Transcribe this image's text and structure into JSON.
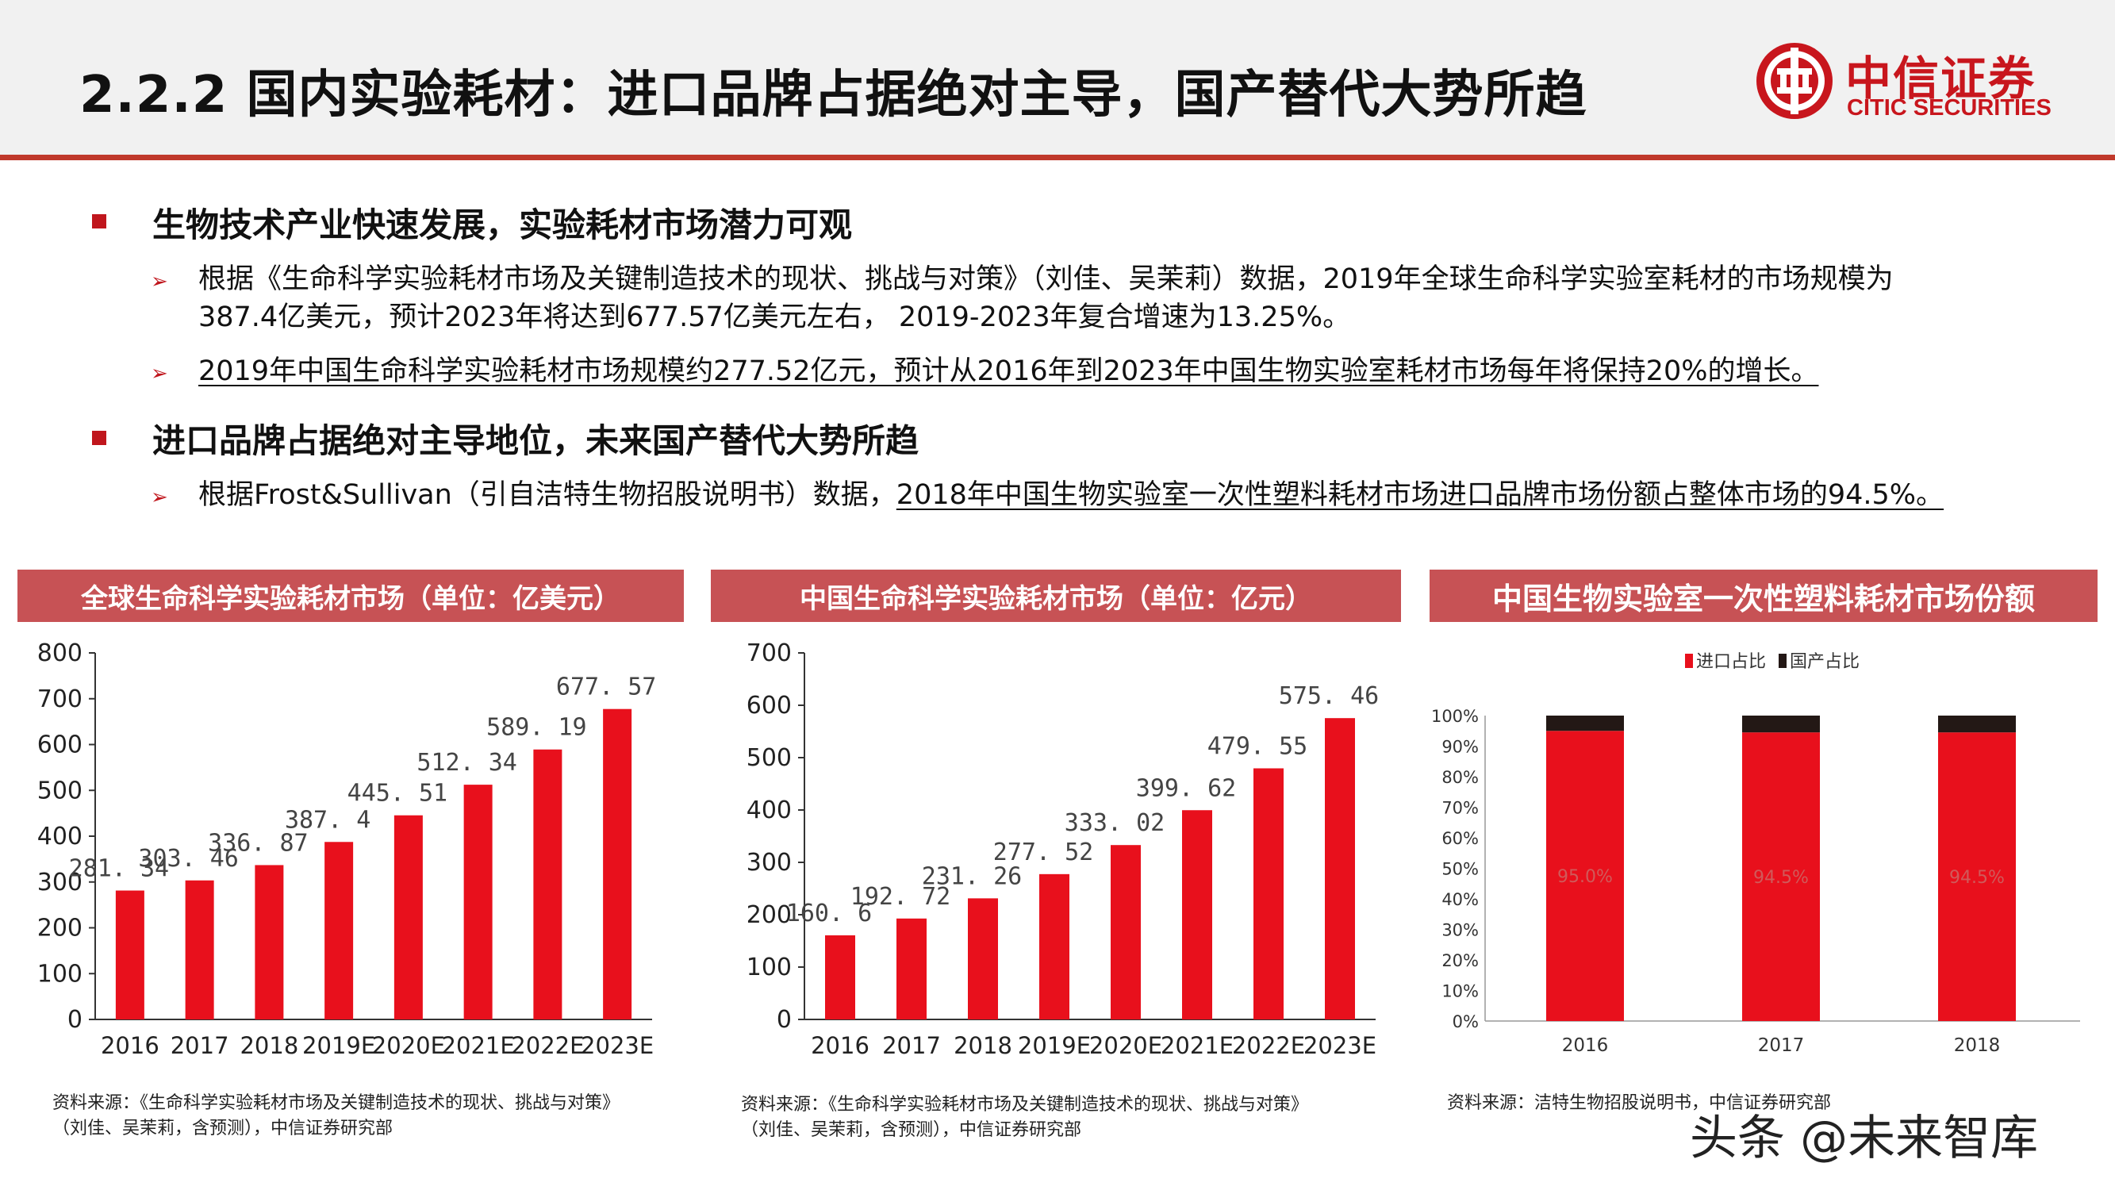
{
  "header": {
    "title": "2.2.2 国内实验耗材：进口品牌占据绝对主导，国产替代大势所趋",
    "logo_cn": "中信证券",
    "logo_en": "CITIC SECURITIES"
  },
  "colors": {
    "accent": "#c0392b",
    "bar_red": "#e8101c",
    "panel_header": "#c75255",
    "domestic": "#231815"
  },
  "section1": {
    "heading": "生物技术产业快速发展，实验耗材市场潜力可观",
    "item1_line1": "根据《生命科学实验耗材市场及关键制造技术的现状、挑战与对策》（刘佳、吴茉莉）数据，2019年全球生命科学实验室耗材的市场规模为",
    "item1_line2": "387.4亿美元，预计2023年将达到677.57亿美元左右， 2019-2023年复合增速为13.25%。",
    "item2": "2019年中国生命科学实验耗材市场规模约277.52亿元，预计从2016年到2023年中国生物实验室耗材市场每年将保持20%的增长。"
  },
  "section2": {
    "heading": "进口品牌占据绝对主导地位，未来国产替代大势所趋",
    "item1_plain": "根据Frost&Sullivan（引自洁特生物招股说明书）数据，",
    "item1_underlined": "2018年中国生物实验室一次性塑料耗材市场进口品牌市场份额占整体市场的94.5%。"
  },
  "chart_data": [
    {
      "type": "bar",
      "title": "全球生命科学实验耗材市场（单位：亿美元）",
      "categories": [
        "2016",
        "2017",
        "2018",
        "2019E",
        "2020E",
        "2021E",
        "2022E",
        "2023E"
      ],
      "values": [
        281.34,
        303.46,
        336.87,
        387.4,
        445.51,
        512.34,
        589.19,
        677.57
      ],
      "labels": [
        "281. 34",
        "303. 46",
        "336. 87",
        "387. 4",
        "445. 51",
        "512. 34",
        "589. 19",
        "677. 57"
      ],
      "yticks": [
        "0",
        "100",
        "200",
        "300",
        "400",
        "500",
        "600",
        "700",
        "800"
      ],
      "ylim": [
        0,
        800
      ],
      "source_line1": "资料来源：《生命科学实验耗材市场及关键制造技术的现状、挑战与对策》",
      "source_line2": "（刘佳、吴茉莉，含预测），中信证券研究部"
    },
    {
      "type": "bar",
      "title": "中国生命科学实验耗材市场（单位：亿元）",
      "categories": [
        "2016",
        "2017",
        "2018",
        "2019E",
        "2020E",
        "2021E",
        "2022E",
        "2023E"
      ],
      "values": [
        160.6,
        192.72,
        231.26,
        277.52,
        333.02,
        399.62,
        479.55,
        575.46
      ],
      "labels": [
        "160. 6",
        "192. 72",
        "231. 26",
        "277. 52",
        "333. 02",
        "399. 62",
        "479. 55",
        "575. 46"
      ],
      "yticks": [
        "0",
        "100",
        "200",
        "300",
        "400",
        "500",
        "600",
        "700"
      ],
      "ylim": [
        0,
        700
      ],
      "source_line1": "资料来源：《生命科学实验耗材市场及关键制造技术的现状、挑战与对策》",
      "source_line2": "（刘佳、吴茉莉，含预测），中信证券研究部"
    },
    {
      "type": "bar",
      "stacked": true,
      "title": "中国生物实验室一次性塑料耗材市场份额",
      "categories": [
        "2016",
        "2017",
        "2018"
      ],
      "series": [
        {
          "name": "进口占比",
          "values": [
            95.0,
            94.5,
            94.5
          ],
          "labels": [
            "95.0%",
            "94.5%",
            "94.5%"
          ]
        },
        {
          "name": "国产占比",
          "values": [
            5.0,
            5.5,
            5.5
          ]
        }
      ],
      "yticks": [
        "0%",
        "10%",
        "20%",
        "30%",
        "40%",
        "50%",
        "60%",
        "70%",
        "80%",
        "90%",
        "100%"
      ],
      "ylim": [
        0,
        100
      ],
      "legend": "top",
      "source_line1": "资料来源：洁特生物招股说明书，中信证券研究部"
    }
  ],
  "watermark": "头条 @未来智库"
}
